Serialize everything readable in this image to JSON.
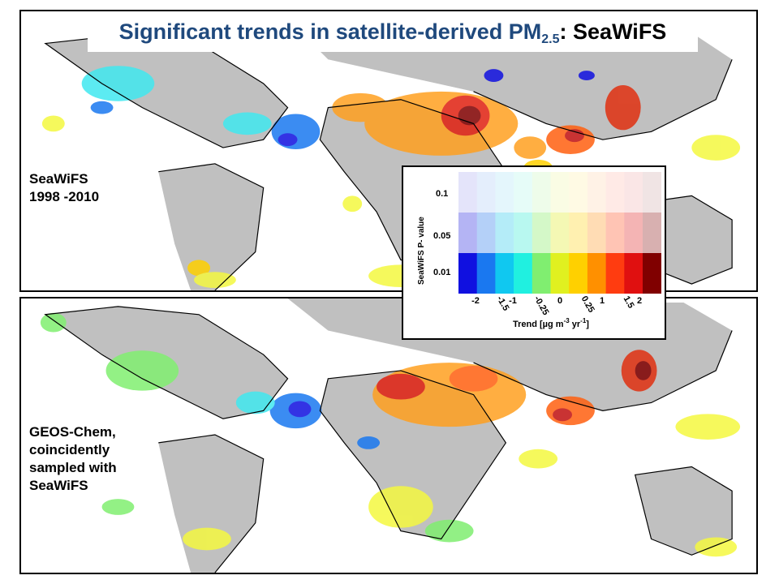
{
  "title": {
    "main": "Significant trends in satellite-derived PM",
    "subscript": "2.5",
    "suffix": ": SeaWiFS"
  },
  "panels": [
    {
      "id": "seawifs",
      "label_lines": [
        "SeaWiFS",
        "1998 -2010"
      ]
    },
    {
      "id": "geos-chem",
      "label_lines": [
        "GEOS-Chem,",
        "coincidently",
        "sampled with",
        "SeaWiFS"
      ]
    }
  ],
  "legend": {
    "y_axis_label": "SeaWiFS  P- value",
    "p_values": [
      "0.1",
      "0.05",
      "0.01"
    ],
    "trend_ticks": [
      "-2",
      "-1.5",
      "-1",
      "-0.25",
      "0",
      "0.25",
      "1",
      "1.5",
      "2"
    ],
    "x_axis_label_base": "Trend [µg m",
    "x_axis_sup1": "-3",
    "x_axis_mid": " yr",
    "x_axis_sup2": "-1",
    "x_axis_end": "]",
    "colors_strong": [
      "#1010e0",
      "#1a78f0",
      "#10c8f0",
      "#20f0e0",
      "#80ee70",
      "#e0f020",
      "#ffd000",
      "#ff9000",
      "#ff3c10",
      "#e01010",
      "#800000"
    ],
    "colors_medium": [
      "#b4b4f4",
      "#b4d0f8",
      "#b4ecf8",
      "#b8f8f0",
      "#d4f8c8",
      "#f4f8b4",
      "#fff0b0",
      "#ffdcb4",
      "#ffc4b4",
      "#f4b4b4",
      "#d8b0b0"
    ],
    "colors_faint": [
      "#e4e4fa",
      "#e4eefc",
      "#e4f6fc",
      "#e6fcf8",
      "#eefcea",
      "#fafce4",
      "#fffae4",
      "#fff2e6",
      "#ffeae6",
      "#fae6e6",
      "#f0e4e4"
    ]
  },
  "map_colors": {
    "land_nodata": "#c0c0c0",
    "coastline": "#000000",
    "ocean": "#ffffff"
  }
}
